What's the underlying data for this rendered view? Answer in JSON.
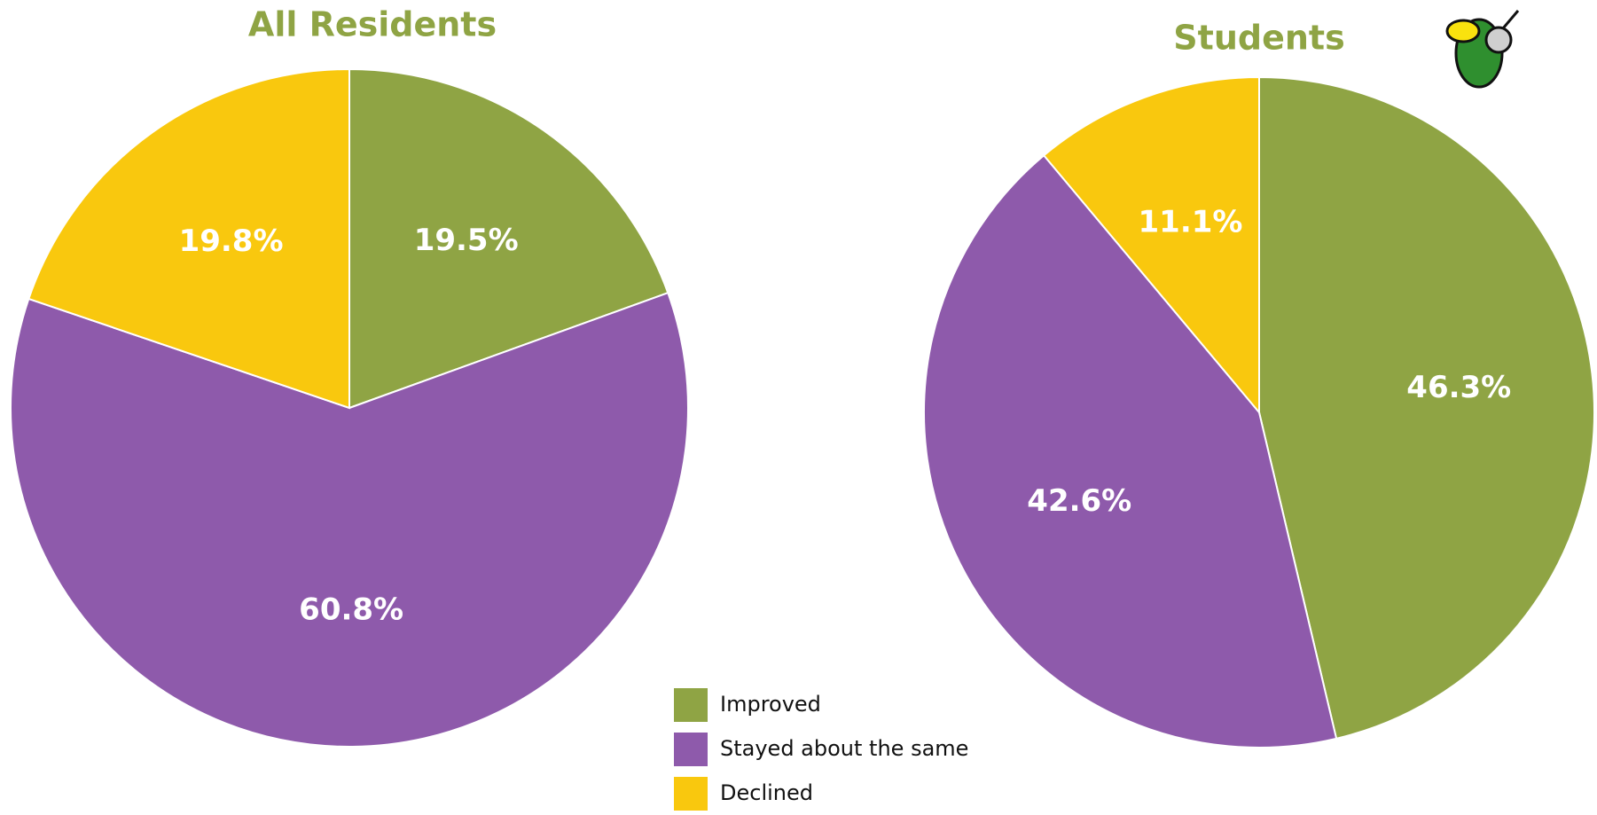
{
  "chart_data": [
    {
      "type": "pie",
      "title": "All Residents",
      "values": [
        19.5,
        60.8,
        19.8
      ],
      "value_labels": [
        "19.5%",
        "60.8%",
        "19.8%"
      ]
    },
    {
      "type": "pie",
      "title": "Students",
      "values": [
        46.3,
        42.6,
        11.1
      ],
      "value_labels": [
        "46.3%",
        "42.6%",
        "11.1%"
      ]
    }
  ],
  "legend": {
    "items": [
      "Improved",
      "Stayed about the same",
      "Declined"
    ],
    "colors": [
      "#8fa444",
      "#8e5aab",
      "#f9c80e"
    ]
  }
}
